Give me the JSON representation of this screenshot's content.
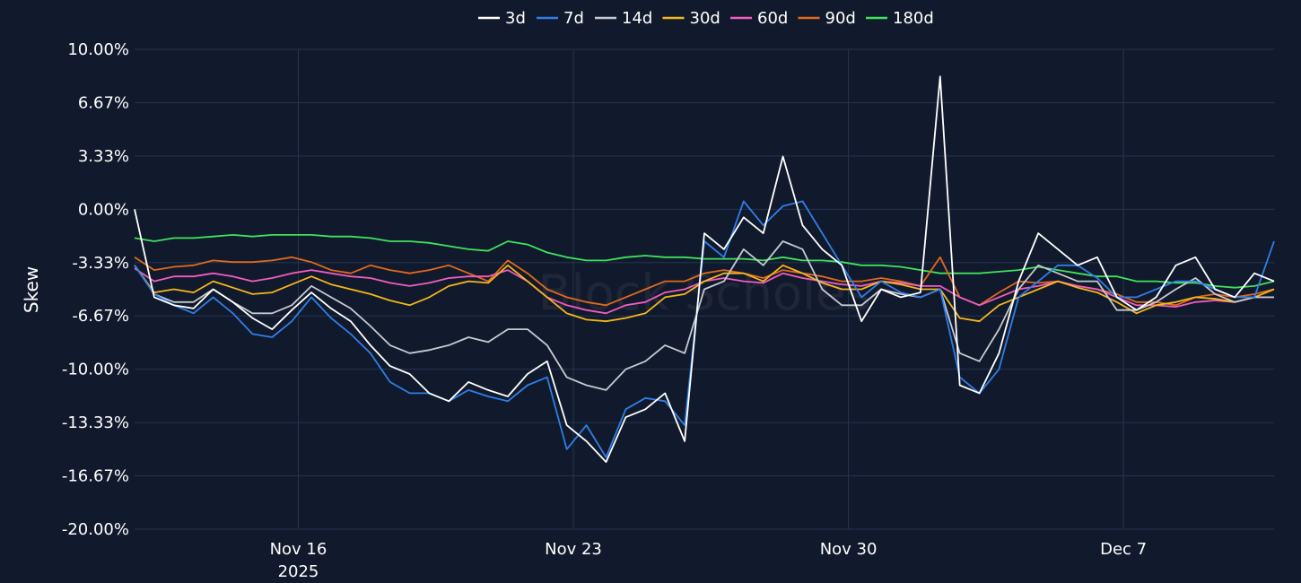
{
  "chart_data": {
    "type": "line",
    "title": "",
    "xlabel": "",
    "ylabel": "Skew",
    "ylim": [
      -20,
      10
    ],
    "y_ticks": [
      "10.00%",
      "6.67%",
      "3.33%",
      "0.00%",
      "-3.33%",
      "-6.67%",
      "-10.00%",
      "-13.33%",
      "-16.67%",
      "-20.00%"
    ],
    "x_range": [
      "2025-11-11T20:00",
      "2025-12-10T20:00"
    ],
    "x_ticks": [
      {
        "date": "2025-11-16",
        "label": "Nov 16",
        "sublabel": "2025"
      },
      {
        "date": "2025-11-23",
        "label": "Nov 23",
        "sublabel": ""
      },
      {
        "date": "2025-11-30",
        "label": "Nov 30",
        "sublabel": ""
      },
      {
        "date": "2025-12-07",
        "label": "Dec 7",
        "sublabel": ""
      }
    ],
    "grid": true,
    "legend_position": "top-center",
    "watermark": "Block Scholes",
    "x": [
      "2025-11-11T20:00",
      "2025-11-12T08:00",
      "2025-11-12T20:00",
      "2025-11-13T08:00",
      "2025-11-13T20:00",
      "2025-11-14T08:00",
      "2025-11-14T20:00",
      "2025-11-15T08:00",
      "2025-11-15T20:00",
      "2025-11-16T08:00",
      "2025-11-16T20:00",
      "2025-11-17T08:00",
      "2025-11-17T20:00",
      "2025-11-18T08:00",
      "2025-11-18T20:00",
      "2025-11-19T08:00",
      "2025-11-19T20:00",
      "2025-11-20T08:00",
      "2025-11-20T20:00",
      "2025-11-21T08:00",
      "2025-11-21T20:00",
      "2025-11-22T08:00",
      "2025-11-22T20:00",
      "2025-11-23T08:00",
      "2025-11-23T20:00",
      "2025-11-24T08:00",
      "2025-11-24T20:00",
      "2025-11-25T08:00",
      "2025-11-25T20:00",
      "2025-11-26T08:00",
      "2025-11-26T20:00",
      "2025-11-27T08:00",
      "2025-11-27T20:00",
      "2025-11-28T08:00",
      "2025-11-28T20:00",
      "2025-11-29T08:00",
      "2025-11-29T20:00",
      "2025-11-30T08:00",
      "2025-11-30T20:00",
      "2025-12-01T08:00",
      "2025-12-01T20:00",
      "2025-12-02T08:00",
      "2025-12-02T20:00",
      "2025-12-03T08:00",
      "2025-12-03T20:00",
      "2025-12-04T08:00",
      "2025-12-04T20:00",
      "2025-12-05T08:00",
      "2025-12-05T20:00",
      "2025-12-06T08:00",
      "2025-12-06T20:00",
      "2025-12-07T08:00",
      "2025-12-07T20:00",
      "2025-12-08T08:00",
      "2025-12-08T20:00",
      "2025-12-09T08:00",
      "2025-12-09T20:00",
      "2025-12-10T08:00",
      "2025-12-10T20:00"
    ],
    "series": [
      {
        "name": "3d",
        "color": "#ffffff",
        "values": [
          0.0,
          -5.5,
          -6.0,
          -6.2,
          -5.0,
          -5.8,
          -6.8,
          -7.5,
          -6.3,
          -5.2,
          -6.2,
          -7.0,
          -8.5,
          -9.8,
          -10.3,
          -11.5,
          -12.0,
          -10.8,
          -11.3,
          -11.7,
          -10.3,
          -9.5,
          -13.5,
          -14.5,
          -15.8,
          -13.0,
          -12.5,
          -11.5,
          -14.5,
          -1.5,
          -2.5,
          -0.5,
          -1.5,
          3.3,
          -1.0,
          -2.5,
          -3.5,
          -7.0,
          -5.0,
          -5.5,
          -5.2,
          8.3,
          -11.0,
          -11.5,
          -9.0,
          -4.5,
          -1.5,
          -2.5,
          -3.5,
          -3.0,
          -5.5,
          -6.3,
          -5.5,
          -3.5,
          -3.0,
          -5.0,
          -5.5,
          -4.0,
          -4.5
        ]
      },
      {
        "name": "7d",
        "color": "#2f7ee8",
        "values": [
          -3.5,
          -5.3,
          -6.0,
          -6.5,
          -5.5,
          -6.5,
          -7.8,
          -8.0,
          -7.0,
          -5.5,
          -6.8,
          -7.8,
          -9.0,
          -10.8,
          -11.5,
          -11.5,
          -12.0,
          -11.3,
          -11.7,
          -12.0,
          -11.0,
          -10.5,
          -15.0,
          -13.5,
          -15.5,
          -12.5,
          -11.8,
          -12.0,
          -13.5,
          -2.0,
          -3.0,
          0.5,
          -1.0,
          0.2,
          0.5,
          -1.5,
          -3.5,
          -5.5,
          -4.5,
          -5.2,
          -5.5,
          -5.0,
          -10.5,
          -11.5,
          -10.0,
          -5.5,
          -4.5,
          -3.5,
          -3.5,
          -4.3,
          -5.5,
          -5.5,
          -5.0,
          -4.5,
          -4.5,
          -5.0,
          -5.5,
          -5.5,
          -2.0
        ]
      },
      {
        "name": "14d",
        "color": "#c6c9d1",
        "values": [
          -3.5,
          -5.3,
          -5.8,
          -5.8,
          -5.0,
          -5.8,
          -6.5,
          -6.5,
          -6.0,
          -4.8,
          -5.5,
          -6.2,
          -7.3,
          -8.5,
          -9.0,
          -8.8,
          -8.5,
          -8.0,
          -8.3,
          -7.5,
          -7.5,
          -8.5,
          -10.5,
          -11.0,
          -11.3,
          -10.0,
          -9.5,
          -8.5,
          -9.0,
          -5.0,
          -4.5,
          -2.5,
          -3.5,
          -2.0,
          -2.5,
          -5.0,
          -6.0,
          -6.0,
          -5.0,
          -5.3,
          -5.5,
          -5.0,
          -9.0,
          -9.5,
          -7.5,
          -5.0,
          -3.5,
          -4.0,
          -4.5,
          -4.5,
          -6.3,
          -6.3,
          -5.8,
          -5.0,
          -4.3,
          -5.3,
          -5.8,
          -5.5,
          -5.5
        ]
      },
      {
        "name": "30d",
        "color": "#f3b71b",
        "values": [
          -3.5,
          -5.2,
          -5.0,
          -5.2,
          -4.5,
          -4.9,
          -5.3,
          -5.2,
          -4.7,
          -4.2,
          -4.7,
          -5.0,
          -5.3,
          -5.7,
          -6.0,
          -5.5,
          -4.8,
          -4.5,
          -4.6,
          -3.5,
          -4.5,
          -5.5,
          -6.5,
          -6.9,
          -7.0,
          -6.8,
          -6.5,
          -5.5,
          -5.3,
          -4.5,
          -4.0,
          -4.0,
          -4.5,
          -3.5,
          -4.0,
          -4.6,
          -5.0,
          -5.0,
          -4.5,
          -4.7,
          -5.0,
          -5.0,
          -6.8,
          -7.0,
          -6.0,
          -5.5,
          -5.0,
          -4.5,
          -4.9,
          -5.2,
          -5.8,
          -6.5,
          -6.0,
          -5.8,
          -5.5,
          -5.6,
          -5.8,
          -5.5,
          -5.0
        ]
      },
      {
        "name": "60d",
        "color": "#f25cc0",
        "values": [
          -3.7,
          -4.5,
          -4.2,
          -4.2,
          -4.0,
          -4.2,
          -4.5,
          -4.3,
          -4.0,
          -3.8,
          -4.0,
          -4.2,
          -4.3,
          -4.6,
          -4.8,
          -4.6,
          -4.3,
          -4.2,
          -4.2,
          -3.8,
          -4.5,
          -5.5,
          -6.0,
          -6.3,
          -6.5,
          -6.0,
          -5.8,
          -5.2,
          -5.0,
          -4.5,
          -4.3,
          -4.5,
          -4.6,
          -4.0,
          -4.3,
          -4.5,
          -4.7,
          -4.8,
          -4.5,
          -4.6,
          -4.8,
          -4.8,
          -5.5,
          -6.0,
          -5.5,
          -5.0,
          -4.8,
          -4.5,
          -4.8,
          -5.0,
          -5.5,
          -6.0,
          -6.0,
          -6.1,
          -5.8,
          -5.7,
          -5.8,
          -5.5,
          -5.5
        ]
      },
      {
        "name": "90d",
        "color": "#e0691c",
        "values": [
          -3.0,
          -3.8,
          -3.6,
          -3.5,
          -3.2,
          -3.3,
          -3.3,
          -3.2,
          -3.0,
          -3.3,
          -3.8,
          -4.0,
          -3.5,
          -3.8,
          -4.0,
          -3.8,
          -3.5,
          -4.0,
          -4.5,
          -3.2,
          -4.0,
          -5.0,
          -5.5,
          -5.8,
          -6.0,
          -5.5,
          -5.0,
          -4.5,
          -4.5,
          -4.0,
          -3.8,
          -4.0,
          -4.3,
          -3.8,
          -4.0,
          -4.2,
          -4.5,
          -4.5,
          -4.3,
          -4.5,
          -4.8,
          -3.0,
          -5.5,
          -6.0,
          -5.2,
          -4.5,
          -4.6,
          -4.5,
          -4.8,
          -5.0,
          -5.3,
          -5.8,
          -5.8,
          -6.0,
          -5.5,
          -5.3,
          -5.5,
          -5.3,
          -5.0
        ]
      },
      {
        "name": "180d",
        "color": "#3ee35b",
        "values": [
          -1.8,
          -2.0,
          -1.8,
          -1.8,
          -1.7,
          -1.6,
          -1.7,
          -1.6,
          -1.6,
          -1.6,
          -1.7,
          -1.7,
          -1.8,
          -2.0,
          -2.0,
          -2.1,
          -2.3,
          -2.5,
          -2.6,
          -2.0,
          -2.2,
          -2.7,
          -3.0,
          -3.2,
          -3.2,
          -3.0,
          -2.9,
          -3.0,
          -3.0,
          -3.1,
          -3.1,
          -3.1,
          -3.2,
          -3.0,
          -3.2,
          -3.2,
          -3.3,
          -3.5,
          -3.5,
          -3.6,
          -3.8,
          -4.0,
          -4.0,
          -4.0,
          -3.9,
          -3.8,
          -3.6,
          -3.8,
          -4.0,
          -4.2,
          -4.2,
          -4.5,
          -4.5,
          -4.6,
          -4.6,
          -4.8,
          -4.9,
          -4.8,
          -4.5
        ]
      }
    ]
  }
}
